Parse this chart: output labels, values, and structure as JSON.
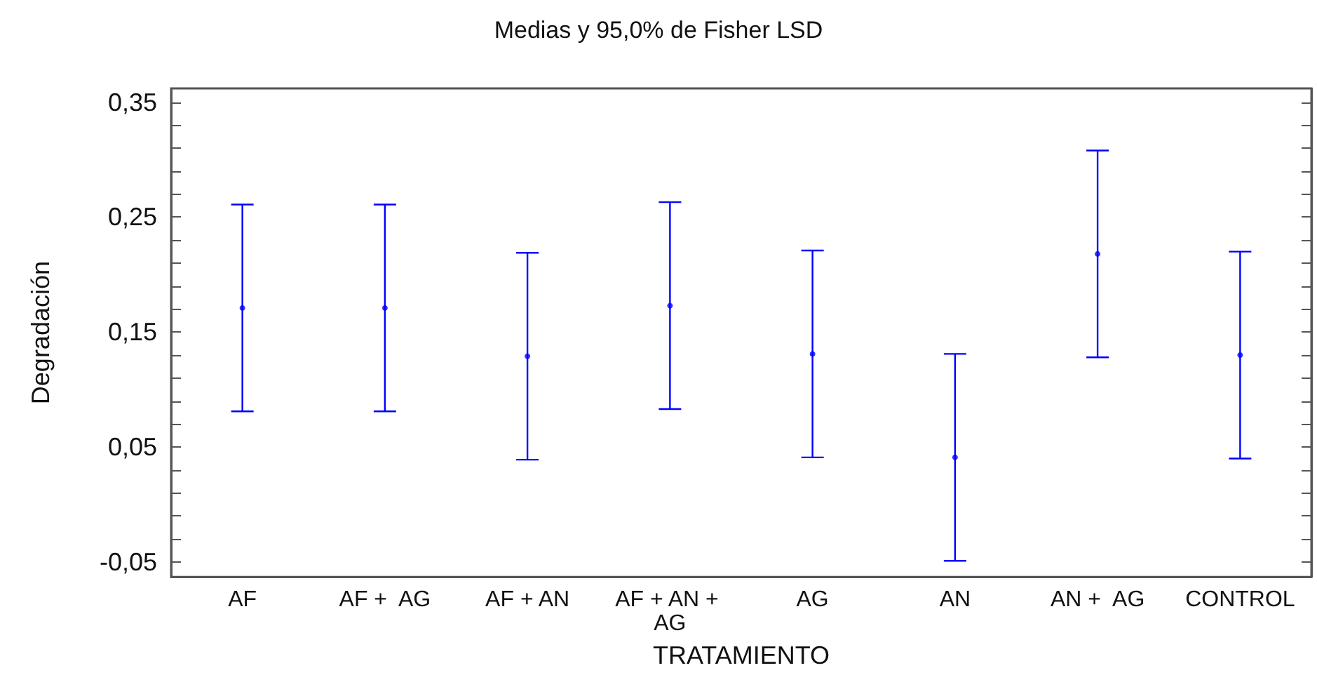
{
  "chart_data": {
    "type": "scatter",
    "title": "Medias y 95,0% de Fisher LSD",
    "xlabel": "TRATAMIENTO",
    "ylabel": "Degradación",
    "categories": [
      "AF",
      "AF +  AG",
      "AF + AN",
      "AF + AN + AG",
      "AG",
      "AN",
      "AN +  AG",
      "CONTROL"
    ],
    "series": [
      {
        "color": "#0000ff",
        "values": [
          0.171,
          0.171,
          0.129,
          0.173,
          0.131,
          0.041,
          0.218,
          0.13
        ],
        "errors": [
          0.09,
          0.09,
          0.09,
          0.09,
          0.09,
          0.09,
          0.09,
          0.09
        ]
      }
    ],
    "ylim": [
      -0.063,
      0.362
    ],
    "yticks": [
      {
        "value": -0.05,
        "label": "-0,05"
      },
      {
        "value": -0.03,
        "label": null
      },
      {
        "value": -0.01,
        "label": null
      },
      {
        "value": 0.01,
        "label": null
      },
      {
        "value": 0.03,
        "label": null
      },
      {
        "value": 0.05,
        "label": "0,05"
      },
      {
        "value": 0.07,
        "label": null
      },
      {
        "value": 0.09,
        "label": null
      },
      {
        "value": 0.11,
        "label": null
      },
      {
        "value": 0.13,
        "label": null
      },
      {
        "value": 0.15,
        "label": "0,15"
      },
      {
        "value": 0.17,
        "label": null
      },
      {
        "value": 0.19,
        "label": null
      },
      {
        "value": 0.21,
        "label": null
      },
      {
        "value": 0.23,
        "label": null
      },
      {
        "value": 0.25,
        "label": "0,25"
      },
      {
        "value": 0.27,
        "label": null
      },
      {
        "value": 0.29,
        "label": null
      },
      {
        "value": 0.31,
        "label": null
      },
      {
        "value": 0.33,
        "label": null
      },
      {
        "value": 0.35,
        "label": "0,35"
      }
    ],
    "grid": false,
    "marker": "circle"
  }
}
